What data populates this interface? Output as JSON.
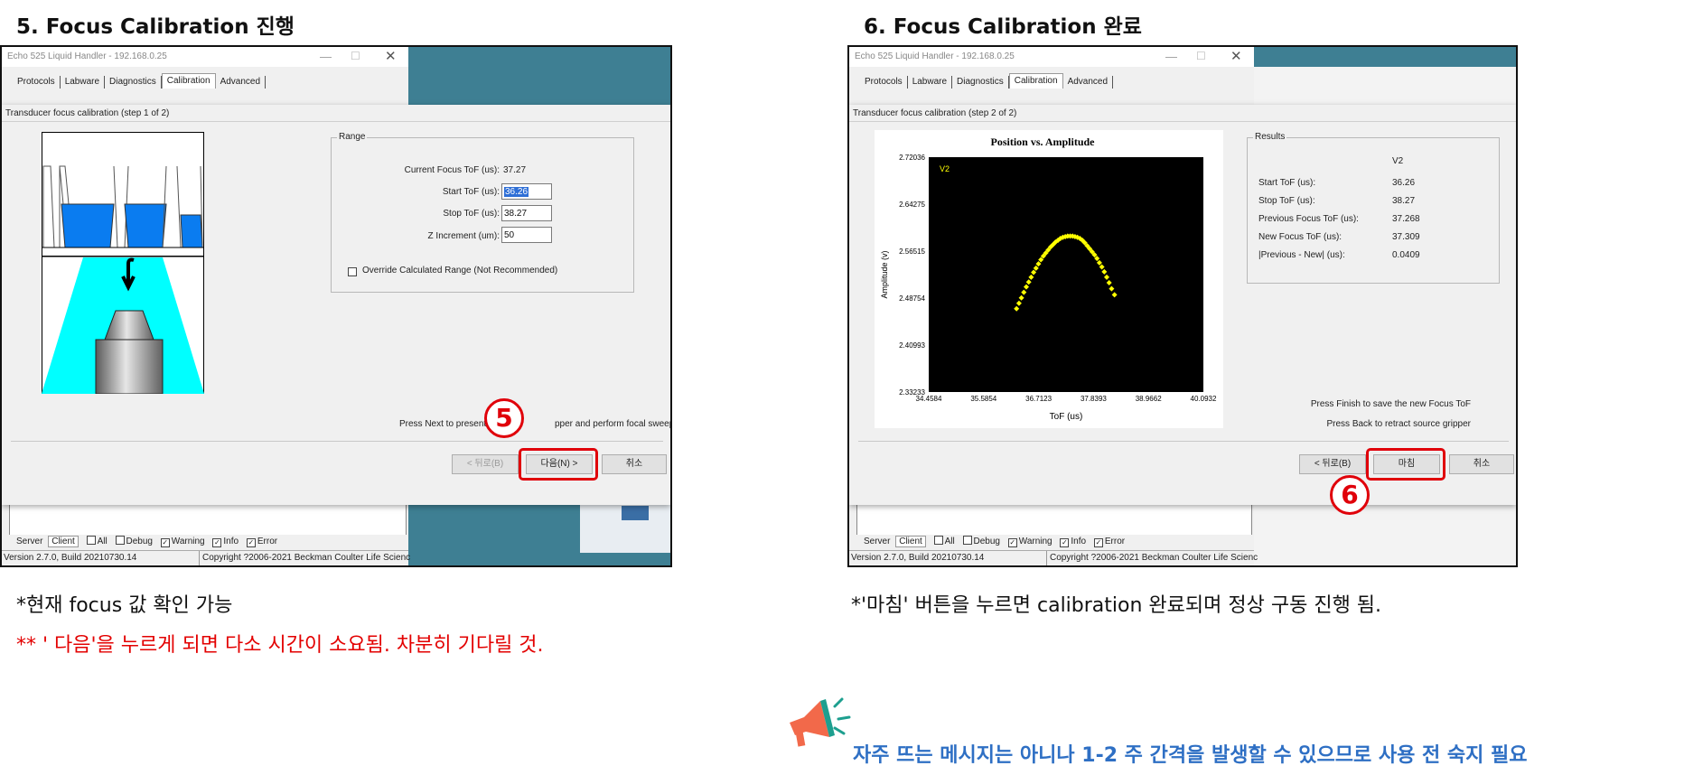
{
  "left": {
    "heading": "5. Focus Calibration 진행",
    "window_title": "Echo 525 Liquid Handler - 192.168.0.25",
    "tabs": [
      "Protocols",
      "Labware",
      "Diagnostics",
      "Calibration",
      "Advanced"
    ],
    "selected_tab": "Calibration",
    "dialog_title": "Transducer focus calibration (step 1 of 2)",
    "range_group": "Range",
    "fields": [
      {
        "label": "Current Focus ToF (us):",
        "value": "37.27"
      },
      {
        "label": "Start ToF (us):",
        "value": "36.26"
      },
      {
        "label": "Stop ToF (us):",
        "value": "38.27"
      },
      {
        "label": "Z Increment (um):",
        "value": "50"
      }
    ],
    "override_label": "Override Calculated Range (Not Recommended)",
    "instruction_before": "Press Next to present",
    "instruction_after": "pper and perform focal sweep",
    "back_button": "< 뒤로(B)",
    "next_button": "다음(N) >",
    "cancel_button": "취소",
    "step_badge": "5",
    "status": {
      "server": "Server",
      "client": "Client",
      "checks": [
        {
          "label": "All",
          "checked": false
        },
        {
          "label": "Debug",
          "checked": false
        },
        {
          "label": "Warning",
          "checked": true
        },
        {
          "label": "Info",
          "checked": true
        },
        {
          "label": "Error",
          "checked": true
        }
      ],
      "version": "Version 2.7.0, Build 20210730.14",
      "copyright": "Copyright ?2006-2021 Beckman Coulter Life Scienc"
    },
    "caption1": "*현재 focus 값 확인 가능",
    "caption2": "** ' 다음'을 누르게 되면 다소 시간이 소요됨. 차분히 기다릴 것."
  },
  "right": {
    "heading": "6. Focus Calibration 완료",
    "window_title": "Echo 525 Liquid Handler - 192.168.0.25",
    "tabs": [
      "Protocols",
      "Labware",
      "Diagnostics",
      "Calibration",
      "Advanced"
    ],
    "selected_tab": "Calibration",
    "dialog_title": "Transducer focus calibration (step 2 of 2)",
    "results_group": "Results",
    "results_column": "V2",
    "results": [
      {
        "label": "Start ToF (us):",
        "value": "36.26"
      },
      {
        "label": "Stop ToF (us):",
        "value": "38.27"
      },
      {
        "label": "Previous Focus ToF (us):",
        "value": "37.268"
      },
      {
        "label": "New Focus ToF (us):",
        "value": "37.309"
      },
      {
        "label": "|Previous - New| (us):",
        "value": "0.0409"
      }
    ],
    "hint1": "Press Finish to save the new Focus ToF",
    "hint2": "Press Back to retract source gripper",
    "back_button": "< 뒤로(B)",
    "finish_button": "마침",
    "cancel_button": "취소",
    "step_badge": "6",
    "status": {
      "server": "Server",
      "client": "Client",
      "checks": [
        {
          "label": "All",
          "checked": false
        },
        {
          "label": "Debug",
          "checked": false
        },
        {
          "label": "Warning",
          "checked": true
        },
        {
          "label": "Info",
          "checked": true
        },
        {
          "label": "Error",
          "checked": true
        }
      ],
      "version": "Version 2.7.0, Build 20210730.14",
      "copyright": "Copyright ?2006-2021 Beckman Coulter Life Scienc"
    },
    "caption": "*'마침' 버튼을 누르면 calibration 완료되며 정상 구동 진행 됨."
  },
  "note": "자주 뜨는 메시지는 아니나 1-2 주 간격을 발생할 수 있으므로 사용 전 숙지 필요",
  "colors": {
    "red": "#e0000a",
    "note_blue": "#2e6fc4",
    "desktop_teal": "#3e7f93",
    "plot_marker": "#ffff00",
    "well_blue": "#0a7cf0",
    "beam_cyan": "#00ffff"
  },
  "chart_data": {
    "type": "scatter",
    "title": "Position vs. Amplitude",
    "xlabel": "ToF (us)",
    "ylabel": "Amplitude (v)",
    "series": [
      {
        "name": "V2"
      }
    ],
    "xlim": [
      34.4584,
      40.0932
    ],
    "ylim": [
      2.33233,
      2.72036
    ],
    "xticks": [
      "34.4584",
      "35.5854",
      "36.7123",
      "37.8393",
      "38.9662",
      "40.0932"
    ],
    "yticks": [
      "2.72036",
      "2.64275",
      "2.56515",
      "2.48754",
      "2.40993",
      "2.33233"
    ],
    "x": [
      36.26,
      36.31,
      36.36,
      36.41,
      36.46,
      36.51,
      36.56,
      36.61,
      36.66,
      36.71,
      36.76,
      36.81,
      36.86,
      36.91,
      36.96,
      37.01,
      37.06,
      37.11,
      37.16,
      37.21,
      37.26,
      37.31,
      37.36,
      37.41,
      37.46,
      37.51,
      37.56,
      37.61,
      37.66,
      37.71,
      37.76,
      37.81,
      37.86,
      37.91,
      37.96,
      38.01,
      38.06,
      38.11,
      38.16,
      38.21,
      38.27
    ],
    "y": [
      2.47,
      2.479,
      2.488,
      2.497,
      2.506,
      2.514,
      2.522,
      2.53,
      2.537,
      2.544,
      2.551,
      2.557,
      2.562,
      2.567,
      2.572,
      2.576,
      2.58,
      2.583,
      2.586,
      2.588,
      2.589,
      2.59,
      2.59,
      2.59,
      2.589,
      2.588,
      2.586,
      2.583,
      2.579,
      2.574,
      2.569,
      2.564,
      2.559,
      2.553,
      2.546,
      2.539,
      2.531,
      2.522,
      2.513,
      2.503,
      2.493
    ]
  }
}
